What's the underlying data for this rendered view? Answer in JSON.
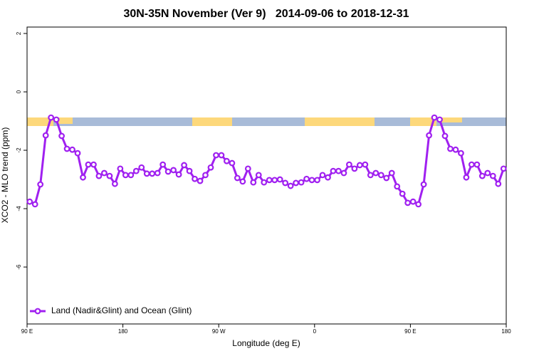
{
  "chart_data": {
    "type": "line",
    "title": "30N-35N November (Ver 9)   2014-09-06 to 2018-12-31",
    "x_label": "Longitude (deg E)",
    "y_label": "XCO2 - MLO trend (ppm)",
    "xlim": [
      90,
      540
    ],
    "ylim": [
      -7.95,
      2.22
    ],
    "xticks": [
      {
        "value": 90,
        "label": "90 E"
      },
      {
        "value": 180,
        "label": "180"
      },
      {
        "value": 270,
        "label": "90 W"
      },
      {
        "value": 360,
        "label": "0"
      },
      {
        "value": 450,
        "label": "90 E"
      },
      {
        "value": 540,
        "label": "180"
      }
    ],
    "yticks": [
      2,
      0,
      -2,
      -4,
      -6
    ],
    "grid": false,
    "legend_position": "bottom-left",
    "x": [
      92.5,
      97.5,
      102.5,
      107.5,
      112.5,
      117.5,
      122.5,
      127.5,
      132.5,
      137.5,
      142.5,
      147.5,
      152.5,
      157.5,
      162.5,
      167.5,
      172.5,
      177.5,
      182.5,
      187.5,
      192.5,
      197.5,
      202.5,
      207.5,
      212.5,
      217.5,
      222.5,
      227.5,
      232.5,
      237.5,
      242.5,
      247.5,
      252.5,
      257.5,
      262.5,
      267.5,
      272.5,
      277.5,
      282.5,
      287.5,
      292.5,
      297.5,
      302.5,
      307.5,
      312.5,
      317.5,
      322.5,
      327.5,
      332.5,
      337.5,
      342.5,
      347.5,
      352.5,
      357.5,
      362.5,
      367.5,
      372.5,
      377.5,
      382.5,
      387.5,
      392.5,
      397.5,
      402.5,
      407.5,
      412.5,
      417.5,
      422.5,
      427.5,
      432.5,
      437.5,
      442.5,
      447.5,
      452.5,
      457.5,
      462.5,
      467.5,
      472.5,
      477.5,
      482.5,
      487.5,
      492.5,
      497.5,
      502.5,
      507.5,
      512.5,
      517.5,
      522.5,
      527.5,
      532.5,
      537.5
    ],
    "series": [
      {
        "name": "Land (Nadir&Glint) and Ocean (Glint)",
        "color": "#a020f0",
        "values": [
          -3.76,
          -3.85,
          -3.17,
          -1.49,
          -0.88,
          -0.95,
          -1.51,
          -1.95,
          -1.98,
          -2.1,
          -2.93,
          -2.49,
          -2.49,
          -2.88,
          -2.78,
          -2.88,
          -3.15,
          -2.63,
          -2.85,
          -2.85,
          -2.71,
          -2.59,
          -2.8,
          -2.8,
          -2.78,
          -2.49,
          -2.73,
          -2.68,
          -2.83,
          -2.51,
          -2.71,
          -2.98,
          -3.05,
          -2.85,
          -2.59,
          -2.17,
          -2.17,
          -2.37,
          -2.44,
          -2.95,
          -3.07,
          -2.63,
          -3.1,
          -2.85,
          -3.1,
          -3.02,
          -3.02,
          -3.0,
          -3.12,
          -3.22,
          -3.12,
          -3.1,
          -2.98,
          -3.02,
          -3.02,
          -2.85,
          -2.93,
          -2.71,
          -2.71,
          -2.78,
          -2.49,
          -2.63,
          -2.51,
          -2.49,
          -2.85,
          -2.78,
          -2.85,
          -2.95,
          -2.78,
          -3.24,
          -3.49,
          -3.8,
          -3.76,
          -3.85,
          -3.17,
          -1.49,
          -0.88,
          -0.95,
          -1.51,
          -1.95,
          -1.98,
          -2.1,
          -2.93,
          -2.49,
          -2.49,
          -2.88,
          -2.78,
          -2.88,
          -3.15,
          -2.63
        ]
      }
    ]
  }
}
